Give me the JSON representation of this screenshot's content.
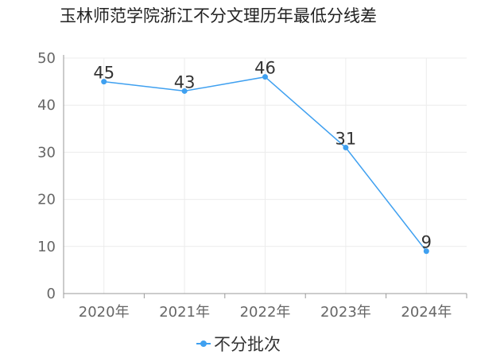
{
  "colors": {
    "series": "#3fa0f0",
    "grid": "#ececec",
    "axis": "#999999"
  },
  "chart_data": {
    "type": "line",
    "title": "玉林师范学院浙江不分文理历年最低分线差",
    "categories": [
      "2020年",
      "2021年",
      "2022年",
      "2023年",
      "2024年"
    ],
    "series": [
      {
        "name": "不分批次",
        "values": [
          45,
          43,
          46,
          31,
          9
        ]
      }
    ],
    "ylim": [
      0,
      50
    ],
    "yticks": [
      0,
      10,
      20,
      30,
      40,
      50
    ],
    "grid": true,
    "legend": "bottom-center",
    "xlabel": "",
    "ylabel": ""
  }
}
